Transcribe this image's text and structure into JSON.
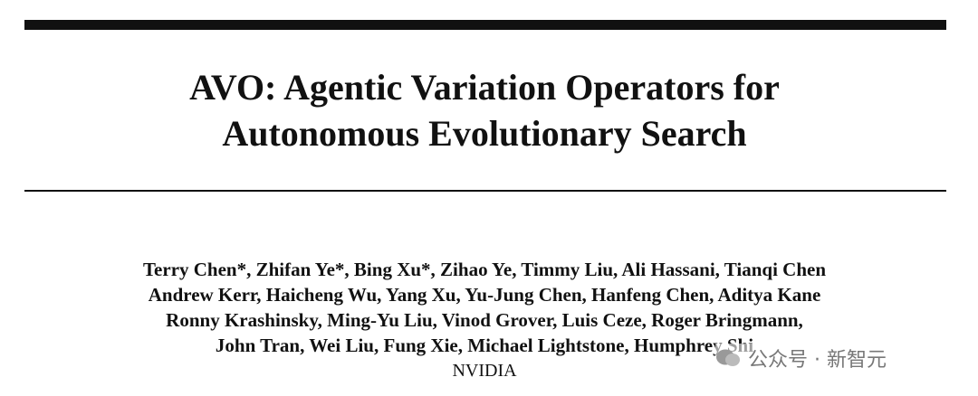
{
  "header": {
    "title_lines": [
      "AVO: Agentic Variation Operators for",
      "Autonomous Evolutionary Search"
    ]
  },
  "authors": {
    "lines": [
      "Terry Chen*, Zhifan Ye*, Bing Xu*, Zihao Ye, Timmy Liu, Ali Hassani, Tianqi Chen",
      "Andrew Kerr, Haicheng Wu, Yang Xu, Yu-Jung Chen, Hanfeng Chen, Aditya Kane",
      "Ronny Krashinsky, Ming-Yu Liu, Vinod Grover, Luis Ceze, Roger Bringmann,",
      "John Tran, Wei Liu, Fung Xie, Michael Lightstone, Humphrey Shi"
    ],
    "affiliation": "NVIDIA"
  },
  "watermark": {
    "text": "公众号 · 新智元"
  }
}
